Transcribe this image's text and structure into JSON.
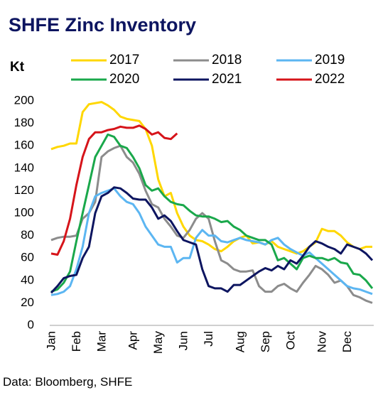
{
  "chart_data": {
    "type": "line",
    "title": "SHFE Zinc Inventory",
    "ylabel": "Kt",
    "source": "Data: Bloomberg, SHFE",
    "categories": [
      "Jan",
      null,
      null,
      null,
      "Feb",
      null,
      null,
      null,
      "Mar",
      null,
      null,
      null,
      null,
      "Apr",
      null,
      null,
      null,
      "May",
      null,
      null,
      null,
      "Jun",
      null,
      null,
      null,
      "Jul",
      null,
      null,
      null,
      null,
      "Aug",
      null,
      null,
      null,
      "Sep",
      null,
      null,
      null,
      "Oct",
      null,
      null,
      null,
      null,
      "Nov",
      null,
      null,
      null,
      "Dec",
      null,
      null,
      null,
      null
    ],
    "series": [
      {
        "name": "2017",
        "color": "#ffd700",
        "values": [
          157,
          159,
          160,
          162,
          162,
          190,
          197,
          198,
          199,
          196,
          192,
          186,
          184,
          183,
          182,
          175,
          160,
          130,
          115,
          118,
          100,
          88,
          80,
          76,
          75,
          72,
          68,
          66,
          70,
          75,
          78,
          80,
          73,
          74,
          72,
          75,
          70,
          68,
          66,
          64,
          66,
          70,
          74,
          86,
          84,
          84,
          80,
          74,
          70,
          68,
          70,
          70
        ]
      },
      {
        "name": "2018",
        "color": "#8c8c8c",
        "values": [
          76,
          78,
          79,
          79,
          80,
          95,
          100,
          110,
          150,
          155,
          158,
          160,
          150,
          145,
          135,
          120,
          108,
          105,
          95,
          88,
          80,
          78,
          85,
          95,
          100,
          95,
          75,
          58,
          55,
          50,
          48,
          48,
          49,
          35,
          30,
          30,
          35,
          37,
          33,
          30,
          38,
          45,
          53,
          50,
          45,
          38,
          40,
          35,
          27,
          25,
          22,
          20
        ]
      },
      {
        "name": "2019",
        "color": "#5cb6f2",
        "values": [
          27,
          28,
          30,
          35,
          50,
          70,
          100,
          115,
          118,
          120,
          122,
          115,
          110,
          108,
          100,
          88,
          80,
          72,
          70,
          70,
          56,
          60,
          60,
          78,
          85,
          80,
          80,
          75,
          74,
          76,
          78,
          76,
          75,
          74,
          72,
          76,
          78,
          72,
          68,
          65,
          62,
          65,
          60,
          55,
          50,
          45,
          40,
          35,
          33,
          32,
          30,
          28
        ]
      },
      {
        "name": "2020",
        "color": "#1aa84b",
        "values": [
          30,
          32,
          38,
          48,
          75,
          100,
          125,
          150,
          160,
          170,
          168,
          160,
          158,
          150,
          140,
          125,
          120,
          122,
          115,
          110,
          108,
          107,
          102,
          98,
          97,
          97,
          95,
          92,
          93,
          88,
          85,
          80,
          78,
          76,
          76,
          72,
          58,
          60,
          55,
          50,
          60,
          62,
          60,
          60,
          58,
          60,
          56,
          55,
          46,
          45,
          40,
          33
        ]
      },
      {
        "name": "2021",
        "color": "#0d1560",
        "values": [
          29,
          35,
          42,
          44,
          45,
          60,
          70,
          100,
          115,
          118,
          123,
          122,
          118,
          113,
          112,
          112,
          105,
          95,
          98,
          93,
          84,
          76,
          74,
          72,
          50,
          35,
          33,
          33,
          30,
          36,
          36,
          40,
          44,
          48,
          51,
          49,
          53,
          50,
          58,
          55,
          62,
          70,
          75,
          73,
          70,
          68,
          64,
          72,
          70,
          68,
          64,
          58
        ]
      },
      {
        "name": "2022",
        "color": "#d6141a",
        "values": [
          64,
          63,
          75,
          95,
          125,
          150,
          166,
          172,
          172,
          174,
          175,
          177,
          176,
          176,
          178,
          175,
          170,
          172,
          167,
          166,
          171,
          null,
          null,
          null,
          null,
          null,
          null,
          null,
          null,
          null,
          null,
          null,
          null,
          null,
          null,
          null,
          null,
          null,
          null,
          null,
          null,
          null,
          null,
          null,
          null,
          null,
          null,
          null,
          null,
          null,
          null,
          null
        ]
      }
    ],
    "ylim": [
      0,
      200
    ],
    "yticks": [
      0,
      20,
      40,
      60,
      80,
      100,
      120,
      140,
      160,
      180,
      200
    ],
    "grid": false,
    "legend": "top"
  }
}
